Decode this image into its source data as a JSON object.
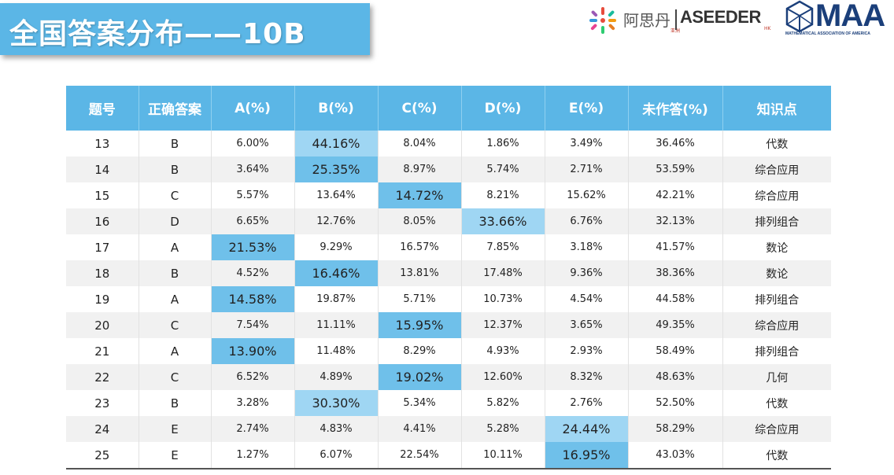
{
  "title": "全国答案分布——10B",
  "logos": {
    "aseeder_cn": "阿思丹",
    "aseeder_cn_sub": "亚洲",
    "aseeder_en": "ASEEDER",
    "aseeder_hk": "HK",
    "maa": "MAA",
    "maa_sub": "MATHEMATICAL ASSOCIATION OF AMERICA"
  },
  "colors": {
    "header_bg": "#5bb6e6",
    "highlight": "#6fc0ea",
    "highlight_light": "#9fd6f3",
    "row_alt": "#f1f1f1"
  },
  "table": {
    "headers": [
      "题号",
      "正确答案",
      "A(%)",
      "B(%)",
      "C(%)",
      "D(%)",
      "E(%)",
      "未作答(%)",
      "知识点"
    ],
    "rows": [
      {
        "q": "13",
        "ans": "B",
        "vals": [
          "6.00%",
          "44.16%",
          "8.04%",
          "1.86%",
          "3.49%"
        ],
        "blank": "36.46%",
        "topic": "代数"
      },
      {
        "q": "14",
        "ans": "B",
        "vals": [
          "3.64%",
          "25.35%",
          "8.97%",
          "5.74%",
          "2.71%"
        ],
        "blank": "53.59%",
        "topic": "综合应用"
      },
      {
        "q": "15",
        "ans": "C",
        "vals": [
          "5.57%",
          "13.64%",
          "14.72%",
          "8.21%",
          "15.62%"
        ],
        "blank": "42.21%",
        "topic": "综合应用"
      },
      {
        "q": "16",
        "ans": "D",
        "vals": [
          "6.65%",
          "12.76%",
          "8.05%",
          "33.66%",
          "6.76%"
        ],
        "blank": "32.13%",
        "topic": "排列组合"
      },
      {
        "q": "17",
        "ans": "A",
        "vals": [
          "21.53%",
          "9.29%",
          "16.57%",
          "7.85%",
          "3.18%"
        ],
        "blank": "41.57%",
        "topic": "数论"
      },
      {
        "q": "18",
        "ans": "B",
        "vals": [
          "4.52%",
          "16.46%",
          "13.81%",
          "17.48%",
          "9.36%"
        ],
        "blank": "38.36%",
        "topic": "数论"
      },
      {
        "q": "19",
        "ans": "A",
        "vals": [
          "14.58%",
          "19.87%",
          "5.71%",
          "10.73%",
          "4.54%"
        ],
        "blank": "44.58%",
        "topic": "排列组合"
      },
      {
        "q": "20",
        "ans": "C",
        "vals": [
          "7.54%",
          "11.11%",
          "15.95%",
          "12.37%",
          "3.65%"
        ],
        "blank": "49.35%",
        "topic": "综合应用"
      },
      {
        "q": "21",
        "ans": "A",
        "vals": [
          "13.90%",
          "11.48%",
          "8.29%",
          "4.93%",
          "2.93%"
        ],
        "blank": "58.49%",
        "topic": "排列组合"
      },
      {
        "q": "22",
        "ans": "C",
        "vals": [
          "6.52%",
          "4.89%",
          "19.02%",
          "12.60%",
          "8.32%"
        ],
        "blank": "48.63%",
        "topic": "几何"
      },
      {
        "q": "23",
        "ans": "B",
        "vals": [
          "3.28%",
          "30.30%",
          "5.34%",
          "5.82%",
          "2.76%"
        ],
        "blank": "52.50%",
        "topic": "代数"
      },
      {
        "q": "24",
        "ans": "E",
        "vals": [
          "2.74%",
          "4.83%",
          "4.41%",
          "5.28%",
          "24.44%"
        ],
        "blank": "58.29%",
        "topic": "综合应用"
      },
      {
        "q": "25",
        "ans": "E",
        "vals": [
          "1.27%",
          "6.07%",
          "22.54%",
          "10.11%",
          "16.95%"
        ],
        "blank": "43.03%",
        "topic": "代数"
      }
    ]
  }
}
